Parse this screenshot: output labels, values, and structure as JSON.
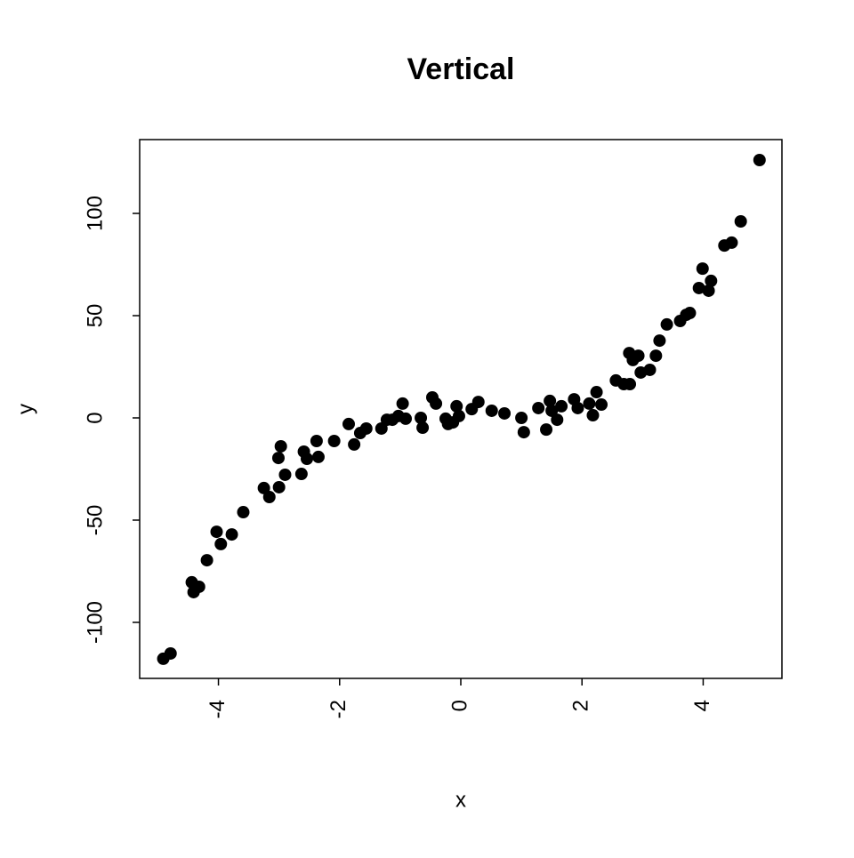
{
  "chart_data": {
    "type": "scatter",
    "title": "Vertical",
    "x_label": "x",
    "y_label": "y",
    "color": "#000000",
    "x": [
      -4.91,
      -4.79,
      -4.44,
      -4.41,
      -4.32,
      -4.19,
      -4.03,
      -3.96,
      -3.78,
      -3.59,
      -3.25,
      -3.16,
      -3.0,
      -3.01,
      -2.97,
      -2.9,
      -2.63,
      -2.59,
      -2.54,
      -2.38,
      -2.35,
      -2.09,
      -1.85,
      -1.76,
      -1.66,
      -1.56,
      -1.31,
      -1.22,
      -1.13,
      -1.03,
      -0.96,
      -0.91,
      -0.66,
      -0.63,
      -0.47,
      -0.41,
      -0.25,
      -0.21,
      -0.13,
      -0.07,
      -0.03,
      0.18,
      0.29,
      0.51,
      0.72,
      1.0,
      1.04,
      1.28,
      1.41,
      1.47,
      1.5,
      1.59,
      1.66,
      1.87,
      1.93,
      2.12,
      2.18,
      2.24,
      2.32,
      2.56,
      2.69,
      2.78,
      2.79,
      2.84,
      2.93,
      2.97,
      3.12,
      3.22,
      3.28,
      3.4,
      3.62,
      3.72,
      3.78,
      3.93,
      3.99,
      4.09,
      4.13,
      4.35,
      4.47,
      4.62,
      4.93
    ],
    "values": [
      -117.8,
      -115.2,
      -80.4,
      -85.2,
      -82.6,
      -69.6,
      -55.7,
      -61.7,
      -57.0,
      -46.1,
      -34.3,
      -38.7,
      -33.9,
      -19.6,
      -13.9,
      -27.8,
      -27.4,
      -16.5,
      -20.0,
      -11.3,
      -19.1,
      -11.3,
      -3.0,
      -13.0,
      -7.4,
      -5.2,
      -5.2,
      -0.9,
      -0.9,
      0.9,
      7.0,
      -0.4,
      0,
      -4.8,
      10.0,
      7.0,
      -0.4,
      -3.0,
      -2.2,
      5.7,
      0.9,
      4.3,
      7.8,
      3.5,
      2.2,
      0,
      -7.0,
      4.8,
      -5.7,
      8.3,
      3.5,
      -0.9,
      5.7,
      9.1,
      4.8,
      7.0,
      1.3,
      12.6,
      6.5,
      18.3,
      16.5,
      31.7,
      16.5,
      28.3,
      30.4,
      22.2,
      23.5,
      30.4,
      37.8,
      45.7,
      47.4,
      50.4,
      51.3,
      63.5,
      73.0,
      62.2,
      67.0,
      84.3,
      85.7,
      96.1,
      126.1
    ],
    "xlim": [
      -5.3,
      5.3
    ],
    "ylim": [
      -127.4,
      136.1
    ],
    "xticks": [
      -4,
      -2,
      0,
      2,
      4
    ],
    "yticks": [
      -100,
      -50,
      0,
      50,
      100
    ]
  }
}
